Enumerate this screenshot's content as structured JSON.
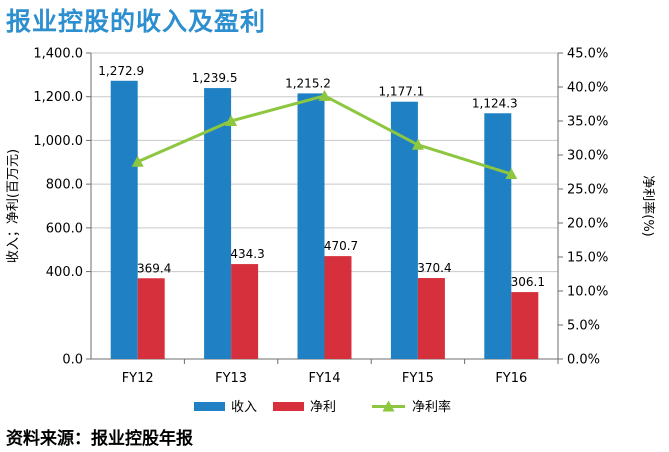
{
  "title": "报业控股的收入及盈利",
  "source": "资料来源：报业控股年报",
  "chart_data": {
    "type": "bar",
    "categories": [
      "FY12",
      "FY13",
      "FY14",
      "FY15",
      "FY16"
    ],
    "series": [
      {
        "name": "收入",
        "kind": "bar",
        "axis": "left",
        "color": "#1f80c4",
        "values": [
          1272.9,
          1239.5,
          1215.2,
          1177.1,
          1124.3
        ],
        "labels": [
          "1,272.9",
          "1,239.5",
          "1,215.2",
          "1,177.1",
          "1,124.3"
        ]
      },
      {
        "name": "净利",
        "kind": "bar",
        "axis": "left",
        "color": "#d7303d",
        "values": [
          369.4,
          434.3,
          470.7,
          370.4,
          306.1
        ],
        "labels": [
          "369.4",
          "434.3",
          "470.7",
          "370.4",
          "306.1"
        ]
      },
      {
        "name": "净利率",
        "kind": "line",
        "axis": "right",
        "color": "#8dc63f",
        "marker": "triangle",
        "values": [
          29.0,
          35.0,
          38.7,
          31.5,
          27.2
        ]
      }
    ],
    "ylabel": "收入；净利(百万元)",
    "ylabel_right": "净利率(%)",
    "ylim": [
      0,
      1400
    ],
    "ylim_right": [
      0,
      45
    ],
    "yticks": [
      {
        "value": 0,
        "label": "0.0"
      },
      {
        "value": 400,
        "label": "400.0"
      },
      {
        "value": 600,
        "label": "600.0"
      },
      {
        "value": 800,
        "label": "800.0"
      },
      {
        "value": 1000,
        "label": "1,000.0"
      },
      {
        "value": 1200,
        "label": "1,200.0"
      },
      {
        "value": 1400,
        "label": "1,400.0"
      }
    ],
    "yticks_right": [
      {
        "value": 0,
        "label": "0.0%"
      },
      {
        "value": 5,
        "label": "5.0%"
      },
      {
        "value": 10,
        "label": "10.0%"
      },
      {
        "value": 15,
        "label": "15.0%"
      },
      {
        "value": 20,
        "label": "20.0%"
      },
      {
        "value": 25,
        "label": "25.0%"
      },
      {
        "value": 30,
        "label": "30.0%"
      },
      {
        "value": 35,
        "label": "35.0%"
      },
      {
        "value": 40,
        "label": "40.0%"
      },
      {
        "value": 45,
        "label": "45.0%"
      }
    ],
    "grid": true,
    "legend": "bottom"
  }
}
